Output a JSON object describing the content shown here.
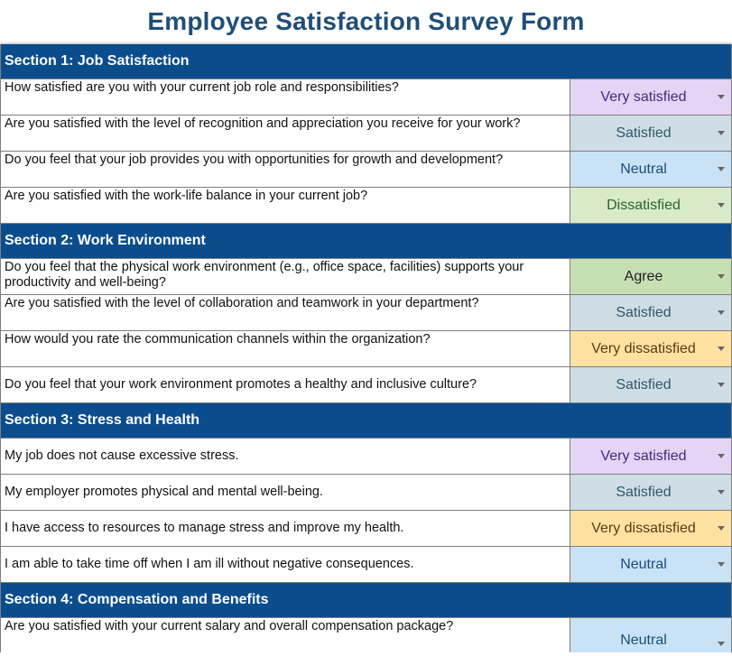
{
  "form": {
    "title": "Employee Satisfaction Survey Form"
  },
  "sections": [
    {
      "title": "Section 1:  Job Satisfaction",
      "questions": [
        {
          "text": "How satisfied are you with your current job role and responsibilities?",
          "answer": "Very satisfied"
        },
        {
          "text": "Are you satisfied with the level of recognition and appreciation you receive for your work?",
          "answer": "Satisfied"
        },
        {
          "text": "Do you feel that your job provides you with opportunities for growth and development?",
          "answer": "Neutral"
        },
        {
          "text": "Are you satisfied with the work-life balance in your current job?",
          "answer": "Dissatisfied"
        }
      ]
    },
    {
      "title": "Section 2: Work Environment",
      "questions": [
        {
          "text": "Do you feel that the physical work environment (e.g., office space, facilities) supports your productivity and well-being?",
          "answer": "Agree"
        },
        {
          "text": "Are you satisfied with the level of collaboration and teamwork in your department?",
          "answer": "Satisfied"
        },
        {
          "text": "How would you rate the communication channels within the organization?",
          "answer": "Very dissatisfied"
        },
        {
          "text": "Do you feel that your work environment promotes a healthy and inclusive culture?",
          "answer": "Satisfied"
        }
      ]
    },
    {
      "title": "Section 3: Stress and Health",
      "questions": [
        {
          "text": "My job does not cause excessive stress.",
          "answer": "Very satisfied"
        },
        {
          "text": "My employer promotes physical and mental well-being.",
          "answer": "Satisfied"
        },
        {
          "text": "I have access to resources to manage stress and improve my health.",
          "answer": "Very dissatisfied"
        },
        {
          "text": "I am able to take time off when I am ill without negative consequences.",
          "answer": "Neutral"
        }
      ]
    },
    {
      "title": "Section 4: Compensation and Benefits",
      "questions": [
        {
          "text": "Are you satisfied with your current salary and overall compensation package?",
          "answer": "Neutral"
        }
      ]
    }
  ],
  "colors": {
    "title": "#1f4e79",
    "section_bg": "#0b4d8c",
    "very_satisfied": "#e4d4f5",
    "satisfied": "#cfdde5",
    "neutral": "#c9e2f5",
    "dissatisfied": "#d7ebc8",
    "agree": "#c6e0b4",
    "very_dissatisfied": "#ffe2a1"
  },
  "icons": {
    "dropdown": "chevron-down-icon"
  }
}
